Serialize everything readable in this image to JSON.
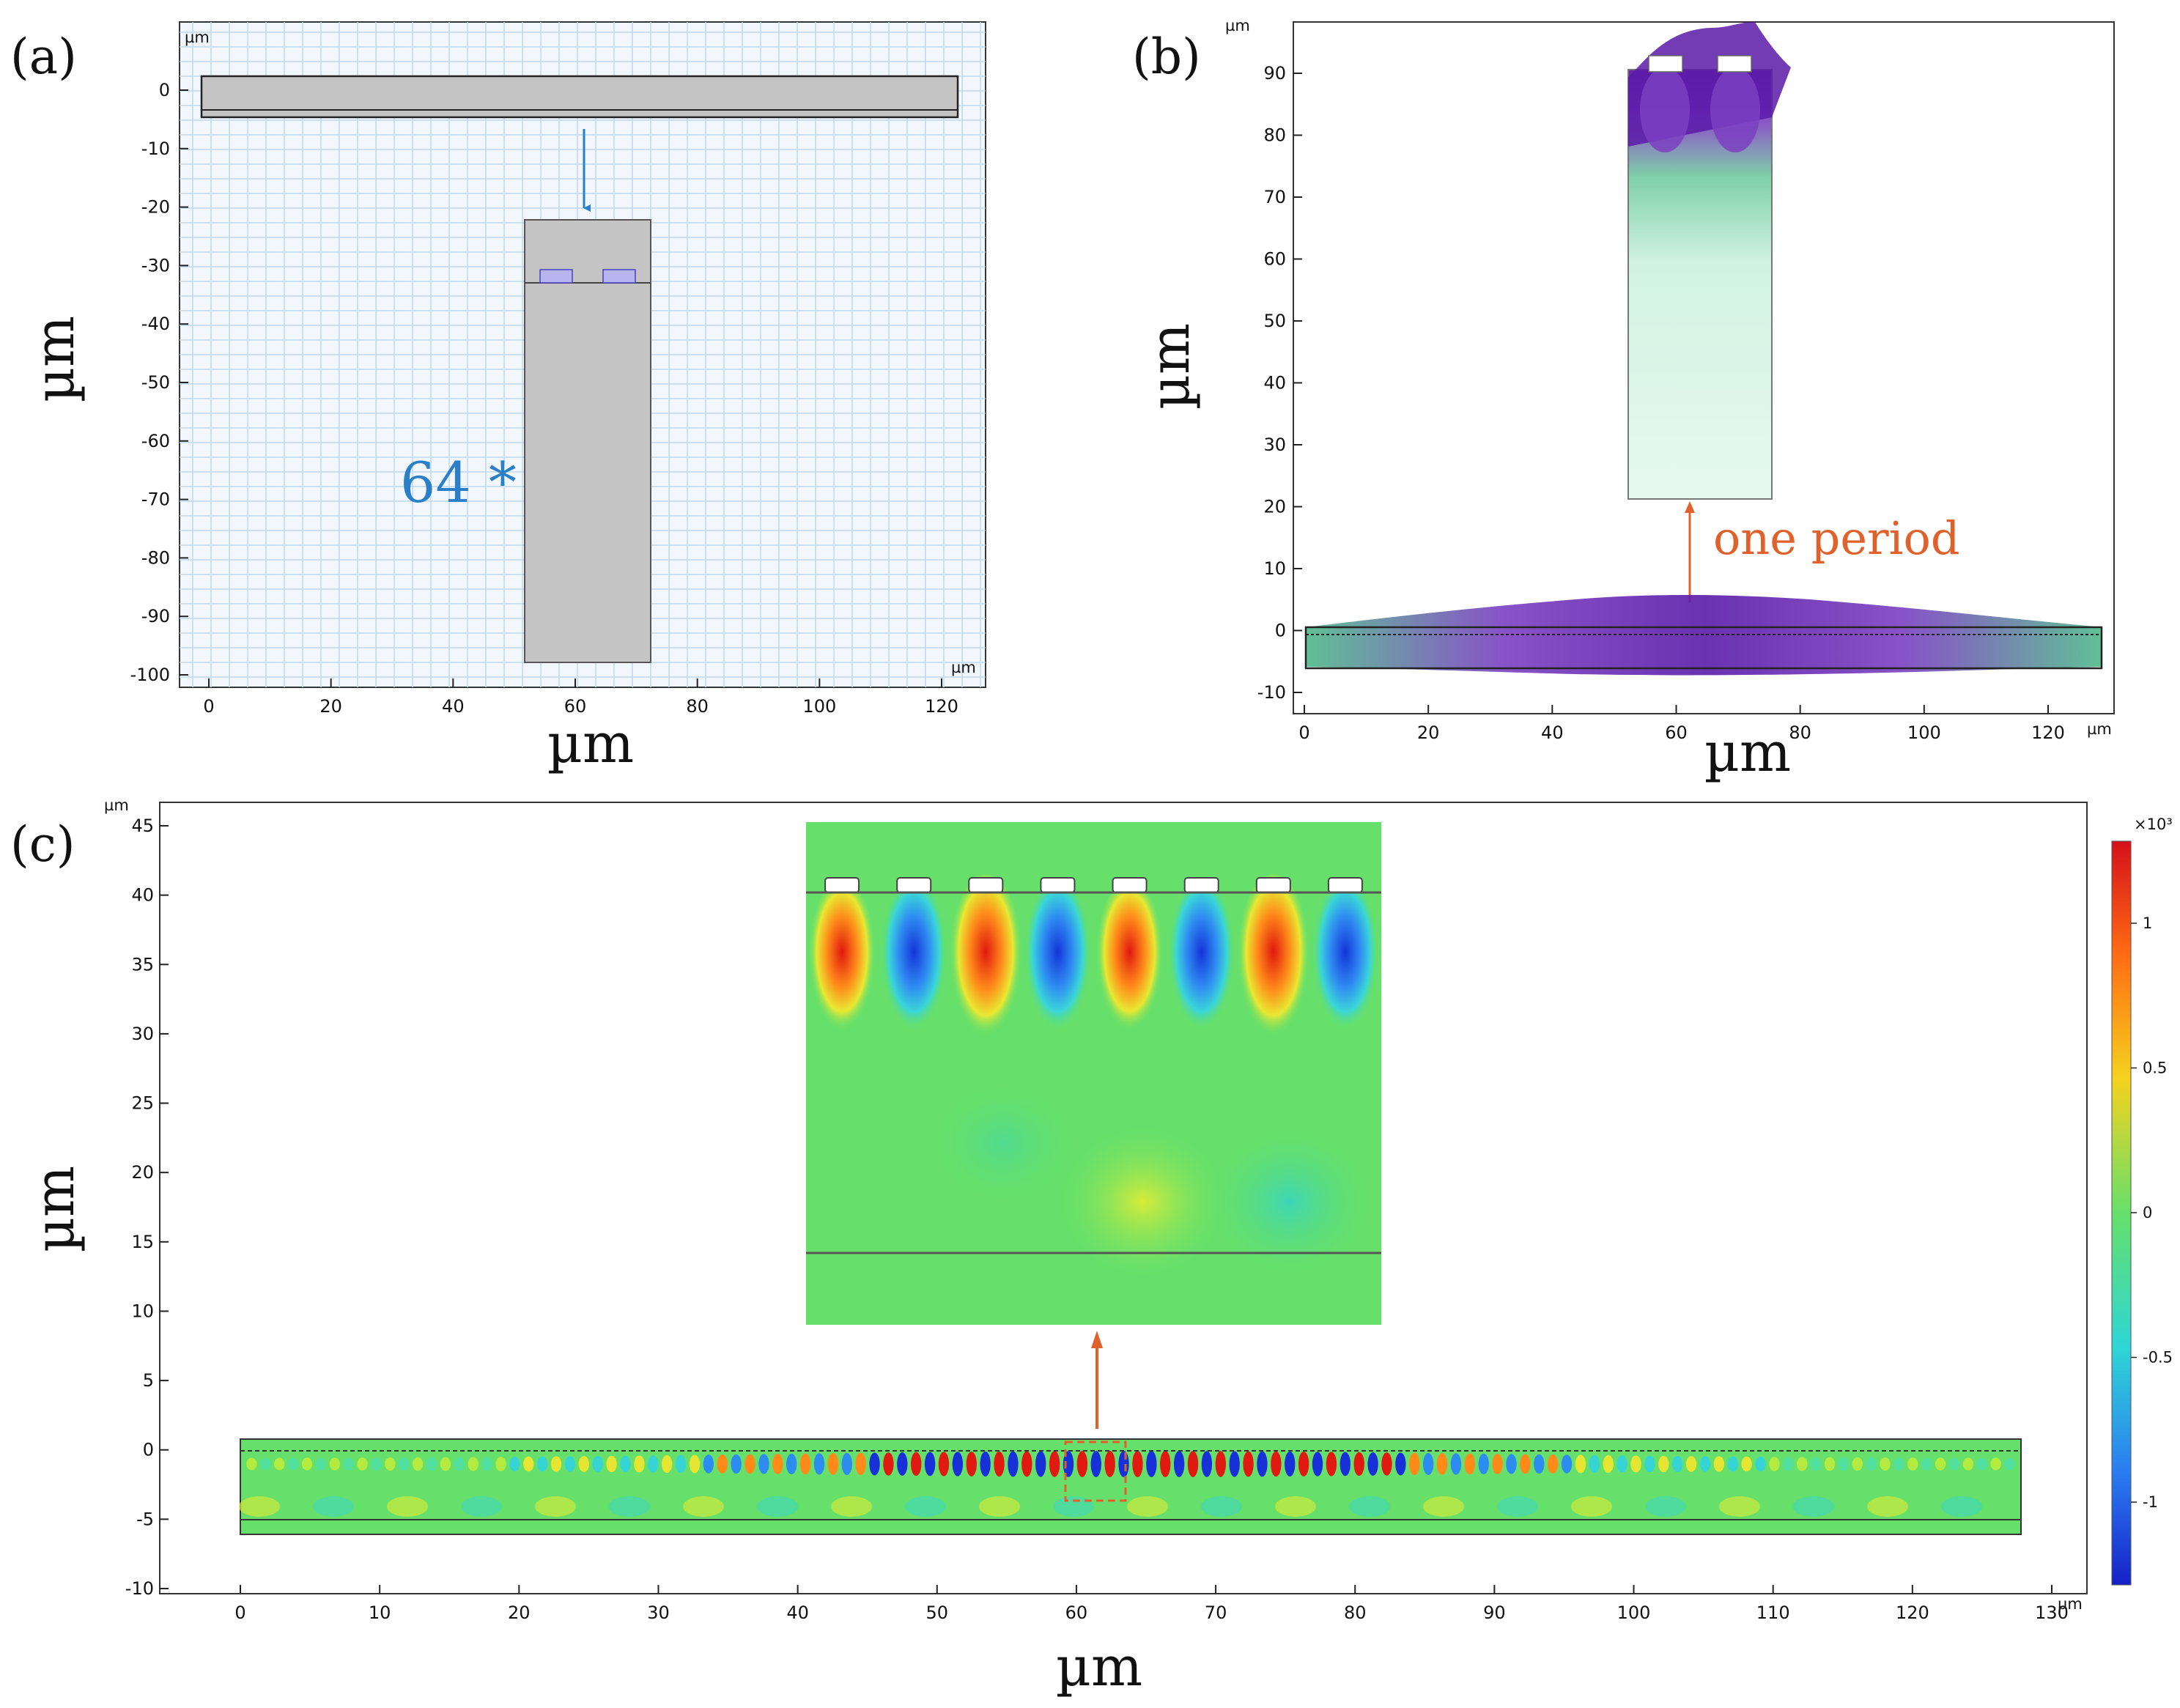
{
  "panels": {
    "a": {
      "label": "(a)",
      "unit_label": "µm",
      "x_axis_title": "µm",
      "y_axis_title": "µm",
      "annotation": "64 *",
      "x_ticks": [
        "0",
        "20",
        "40",
        "60",
        "80",
        "100",
        "120"
      ],
      "y_ticks": [
        "0",
        "-10",
        "-20",
        "-30",
        "-40",
        "-50",
        "-60",
        "-70",
        "-80",
        "-90",
        "-100"
      ]
    },
    "b": {
      "label": "(b)",
      "unit_label": "µm",
      "x_axis_title": "µm",
      "y_axis_title": "µm",
      "annotation": "one period",
      "x_ticks": [
        "0",
        "20",
        "40",
        "60",
        "80",
        "100",
        "120"
      ],
      "y_ticks": [
        "90",
        "80",
        "70",
        "60",
        "50",
        "40",
        "30",
        "20",
        "10",
        "0",
        "-10"
      ]
    },
    "c": {
      "label": "(c)",
      "unit_label": "µm",
      "x_axis_title": "µm",
      "y_axis_title": "µm",
      "x_ticks": [
        "0",
        "10",
        "20",
        "30",
        "40",
        "50",
        "60",
        "70",
        "80",
        "90",
        "100",
        "110",
        "120",
        "130"
      ],
      "y_ticks": [
        "45",
        "40",
        "35",
        "30",
        "25",
        "20",
        "15",
        "10",
        "5",
        "0",
        "-5",
        "-10"
      ],
      "colorbar": {
        "exponent_label": "×10³",
        "ticks": [
          "1",
          "0.5",
          "0",
          "-0.5",
          "-1"
        ]
      }
    }
  },
  "colors": {
    "grid_bg": "#f1f7fc",
    "grid_line": "#bfd9ee",
    "substrate_gray": "#c4c4c4",
    "electrode_blue": "#b8b4f0",
    "accent_blue": "#2a7fc8",
    "accent_orange": "#e0622a",
    "field_green": "#5fe06a"
  }
}
